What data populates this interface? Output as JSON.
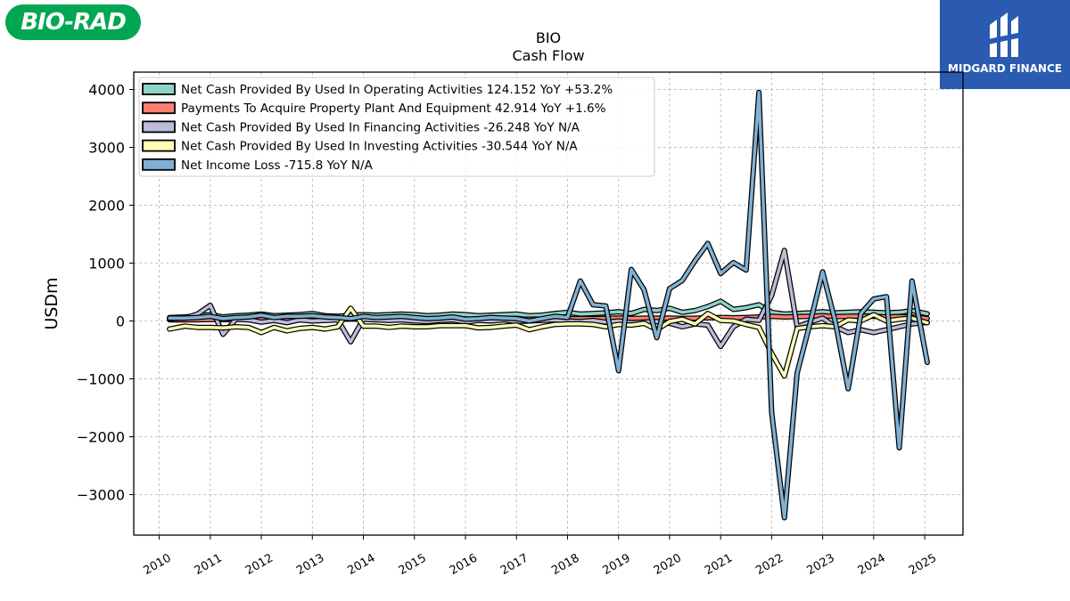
{
  "logos": {
    "left": "BIO-RAD",
    "right": "MIDGARD FINANCE"
  },
  "chart_data": {
    "type": "line",
    "title": "BIO",
    "subtitle": "Cash Flow",
    "xlabel": "",
    "ylabel": "USDm",
    "ylim": [
      -3700,
      4300
    ],
    "xlim": [
      2009.5,
      2025.75
    ],
    "yticks": [
      -3000,
      -2000,
      -1000,
      0,
      1000,
      2000,
      3000,
      4000
    ],
    "ytick_labels": [
      "−3000",
      "−2000",
      "−1000",
      "0",
      "1000",
      "2000",
      "3000",
      "4000"
    ],
    "xticks": [
      2010,
      2011,
      2012,
      2013,
      2014,
      2015,
      2016,
      2017,
      2018,
      2019,
      2020,
      2021,
      2022,
      2023,
      2024,
      2025
    ],
    "xtick_labels": [
      "2010",
      "2011",
      "2012",
      "2013",
      "2014",
      "2015",
      "2016",
      "2017",
      "2018",
      "2019",
      "2020",
      "2021",
      "2022",
      "2023",
      "2024",
      "2025"
    ],
    "grid": true,
    "legend_position": "top-left",
    "x": [
      2010.2,
      2010.5,
      2010.75,
      2011.0,
      2011.25,
      2011.5,
      2011.75,
      2012.0,
      2012.25,
      2012.5,
      2012.75,
      2013.0,
      2013.25,
      2013.5,
      2013.75,
      2014.0,
      2014.25,
      2014.5,
      2014.75,
      2015.0,
      2015.25,
      2015.5,
      2015.75,
      2016.0,
      2016.25,
      2016.5,
      2016.75,
      2017.0,
      2017.25,
      2017.5,
      2017.75,
      2018.0,
      2018.25,
      2018.5,
      2018.75,
      2019.0,
      2019.25,
      2019.5,
      2019.75,
      2020.0,
      2020.25,
      2020.5,
      2020.75,
      2021.0,
      2021.25,
      2021.5,
      2021.75,
      2022.0,
      2022.25,
      2022.5,
      2022.75,
      2023.0,
      2023.25,
      2023.5,
      2023.75,
      2024.0,
      2024.25,
      2024.5,
      2024.75,
      2025.05
    ],
    "series": [
      {
        "name": "Net Cash Provided By Used In Operating Activities  124.152 YoY +53.2%",
        "color": "#8dd3c7",
        "values": [
          60,
          70,
          90,
          110,
          70,
          90,
          100,
          120,
          90,
          100,
          110,
          130,
          90,
          80,
          100,
          110,
          100,
          110,
          120,
          110,
          90,
          100,
          120,
          110,
          90,
          100,
          110,
          120,
          90,
          100,
          130,
          150,
          120,
          130,
          140,
          160,
          130,
          200,
          180,
          220,
          150,
          180,
          250,
          340,
          200,
          230,
          280,
          150,
          120,
          130,
          140,
          160,
          140,
          150,
          160,
          150,
          140,
          150,
          180,
          124
        ]
      },
      {
        "name": "Payments To Acquire Property Plant And Equipment  42.914 YoY +1.6%",
        "color": "#fb8072",
        "values": [
          20,
          20,
          22,
          25,
          25,
          28,
          30,
          30,
          30,
          32,
          35,
          35,
          30,
          30,
          32,
          30,
          28,
          30,
          30,
          28,
          27,
          28,
          30,
          28,
          25,
          28,
          30,
          30,
          30,
          32,
          35,
          40,
          40,
          42,
          45,
          50,
          45,
          48,
          50,
          50,
          45,
          48,
          55,
          60,
          55,
          60,
          70,
          80,
          70,
          75,
          80,
          90,
          75,
          80,
          85,
          80,
          70,
          75,
          70,
          43
        ]
      },
      {
        "name": "Net Cash Provided By Used In Financing Activities  -26.248 YoY N/A",
        "color": "#bebada",
        "values": [
          40,
          50,
          120,
          270,
          -230,
          30,
          20,
          -20,
          10,
          -30,
          20,
          0,
          10,
          20,
          -360,
          30,
          20,
          10,
          20,
          0,
          -10,
          10,
          20,
          -20,
          10,
          0,
          20,
          -10,
          0,
          10,
          20,
          0,
          -10,
          10,
          -20,
          0,
          -30,
          -20,
          -10,
          -40,
          -100,
          -50,
          -70,
          -440,
          -100,
          30,
          10,
          440,
          1220,
          -100,
          -20,
          50,
          -100,
          -200,
          -150,
          -200,
          -150,
          -100,
          -50,
          -26
        ]
      },
      {
        "name": "Net Cash Provided By Used In Investing Activities  -30.544 YoY N/A",
        "color": "#ffffb3",
        "values": [
          -140,
          -90,
          -110,
          -110,
          -120,
          -100,
          -110,
          -200,
          -110,
          -170,
          -130,
          -110,
          -140,
          -100,
          220,
          -90,
          -90,
          -110,
          -90,
          -100,
          -100,
          -80,
          -80,
          -80,
          -120,
          -110,
          -90,
          -70,
          -150,
          -100,
          -60,
          -50,
          -50,
          -60,
          -100,
          -60,
          -70,
          -40,
          -150,
          -10,
          30,
          -50,
          130,
          10,
          0,
          -60,
          -110,
          -560,
          -950,
          -130,
          -100,
          -80,
          -100,
          20,
          0,
          110,
          0,
          30,
          50,
          -31
        ]
      },
      {
        "name": "Net Income Loss  -715.8 YoY N/A",
        "color": "#80b1d3",
        "values": [
          50,
          50,
          60,
          80,
          40,
          60,
          70,
          100,
          60,
          80,
          80,
          90,
          70,
          60,
          40,
          80,
          60,
          70,
          80,
          60,
          40,
          50,
          70,
          30,
          40,
          60,
          50,
          40,
          0,
          40,
          80,
          60,
          690,
          280,
          260,
          -860,
          890,
          540,
          -290,
          560,
          700,
          1040,
          1340,
          820,
          1010,
          880,
          3950,
          -1580,
          -3400,
          -900,
          -50,
          850,
          -20,
          -1170,
          130,
          380,
          420,
          -2190,
          690,
          -716
        ]
      }
    ]
  }
}
